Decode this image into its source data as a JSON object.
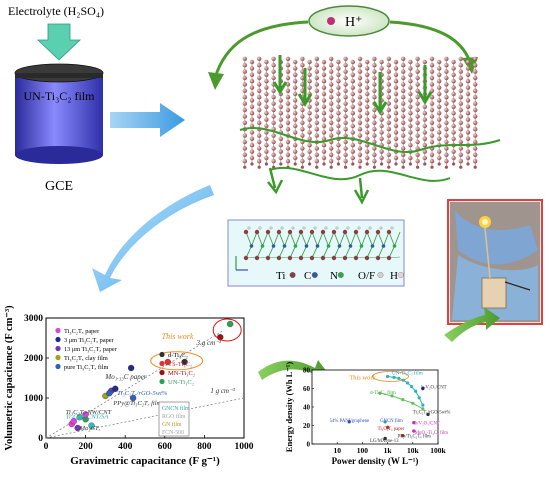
{
  "electrode": {
    "electrolyte_label": "Electrolyte (H₂SO₄)",
    "film_label": "UN-Ti₃C₂ film",
    "gce_label": "GCE"
  },
  "ion": {
    "label": "H⁺"
  },
  "legend_box": {
    "items": [
      {
        "label": "Ti",
        "color": "#8a3f3f"
      },
      {
        "label": "C",
        "color": "#2e5ca0"
      },
      {
        "label": "N",
        "color": "#2fa84f"
      },
      {
        "label": "O/F",
        "color": "#d0d0d0"
      },
      {
        "label": "H",
        "color": "#f0d0d0"
      }
    ]
  },
  "chart_data": [
    {
      "type": "scatter",
      "title": "",
      "xlabel": "Gravimetric capacitance (F g⁻¹)",
      "ylabel": "Volumetric capacitance (F cm⁻³)",
      "xlim": [
        0,
        1000
      ],
      "ylim": [
        0,
        3000
      ],
      "xticks": [
        0,
        200,
        400,
        600,
        800,
        1000
      ],
      "yticks": [
        0,
        1000,
        2000,
        3000
      ],
      "annotations": [
        "This work",
        "3 g cm⁻³",
        "1 g cm⁻³",
        "Mo₁.₃₃C paper",
        "Ti₃C₂Tₓ/rGO-5wt%",
        "PPy@Ti₃C₂Tₓ film",
        "Ti₃C₂Tₓ-NW/CNT",
        "Ti₃C₂Tₓ/CNT/SA",
        "Mo₂CTₓ"
      ],
      "legend_left": [
        {
          "label": "Ti₃C₂Tₓ paper",
          "color": "#e040e0"
        },
        {
          "label": "3 μm Ti₃C₂Tₓ paper",
          "color": "#202a90"
        },
        {
          "label": "13 μm Ti₃C₂Tₓ paper",
          "color": "#6a3ab0"
        },
        {
          "label": "Ti₃C₂Tₓ clay film",
          "color": "#a0a020"
        },
        {
          "label": "pure Ti₃C₂Tₓ film",
          "color": "#3060c0"
        }
      ],
      "legend_right": [
        {
          "label": "d-Ti₃C₂",
          "color": "#303030"
        },
        {
          "label": "TS-Ti₃C₂",
          "color": "#e03030"
        },
        {
          "label": "MN-Ti₃C₂",
          "color": "#a01010"
        },
        {
          "label": "UN-Ti₃C₂",
          "color": "#30a050"
        }
      ],
      "legend_bottom": [
        {
          "label": "GNCN film",
          "color": "#30a0b0"
        },
        {
          "label": "RGO film",
          "color": "#a0a0a0"
        },
        {
          "label": "GN film",
          "color": "#a0a020"
        },
        {
          "label": "FCN-500",
          "color": "#a0a0a0"
        }
      ],
      "points": [
        {
          "x": 130,
          "y": 350,
          "color": "#e040e0"
        },
        {
          "x": 140,
          "y": 420,
          "color": "#e040e0"
        },
        {
          "x": 170,
          "y": 520,
          "color": "#30c0c0"
        },
        {
          "x": 200,
          "y": 470,
          "color": "#30a050"
        },
        {
          "x": 160,
          "y": 250,
          "color": "#6a3ab0"
        },
        {
          "x": 230,
          "y": 310,
          "color": "#30c0c0"
        },
        {
          "x": 200,
          "y": 590,
          "color": "#e040e0"
        },
        {
          "x": 300,
          "y": 1050,
          "color": "#a0a020"
        },
        {
          "x": 330,
          "y": 1180,
          "color": "#6a3ab0"
        },
        {
          "x": 350,
          "y": 1230,
          "color": "#202a90"
        },
        {
          "x": 320,
          "y": 1120,
          "color": "#3060c0"
        },
        {
          "x": 440,
          "y": 1000,
          "color": "#3060c0"
        },
        {
          "x": 430,
          "y": 1750,
          "color": "#202a90"
        },
        {
          "x": 615,
          "y": 1900,
          "color": "#e03030"
        },
        {
          "x": 700,
          "y": 1900,
          "color": "#303030"
        },
        {
          "x": 880,
          "y": 2520,
          "color": "#a01010"
        },
        {
          "x": 930,
          "y": 2850,
          "color": "#30a050"
        },
        {
          "x": 600,
          "y": 300,
          "color": "#e040e0"
        }
      ],
      "lines": [
        {
          "label": "3 g cm⁻³",
          "from": [
            0,
            0
          ],
          "to": [
            900,
            2700
          ]
        },
        {
          "label": "1 g cm⁻³",
          "from": [
            0,
            0
          ],
          "to": [
            1000,
            1000
          ]
        }
      ]
    },
    {
      "type": "scatter",
      "title": "",
      "xlabel": "Power density (W L⁻¹)",
      "ylabel": "Energy density (Wh L⁻¹)",
      "xscale": "log",
      "xlim": [
        1,
        100000
      ],
      "ylim": [
        0,
        80
      ],
      "xticks": [
        "10",
        "100",
        "1k",
        "10k",
        "100k"
      ],
      "yticks": [
        0,
        20,
        40,
        60,
        80
      ],
      "annotations": [
        "This work",
        "UN-Ti₃C₂ film",
        "d-Ti₃C₂ film",
        "h-V₂O₅/CNT",
        "Ti₃C₂Tₓ/rGO-5wt%",
        "GNCN film",
        "b/V₂O₅/CNT",
        "54% PANI/graphene",
        "Ti₃C₂Tₓ paper",
        "MnO₂-Ti₃C₂ film",
        "PPy/Ti₃C₂Tₓ film",
        "LG/MXene-13"
      ],
      "series": [
        {
          "name": "UN-Ti₃C₂ film",
          "color": "#30b0c0",
          "x": [
            1000,
            1800,
            2800,
            4200,
            6200,
            9000,
            13000,
            18000,
            25000
          ],
          "y": [
            73,
            72,
            71,
            69,
            66,
            62,
            57,
            50,
            42
          ]
        },
        {
          "name": "d-Ti₃C₂ film",
          "color": "#60c060",
          "x": [
            500,
            1500,
            4000,
            10000,
            25000
          ],
          "y": [
            55,
            52,
            48,
            44,
            38
          ]
        }
      ]
    }
  ]
}
